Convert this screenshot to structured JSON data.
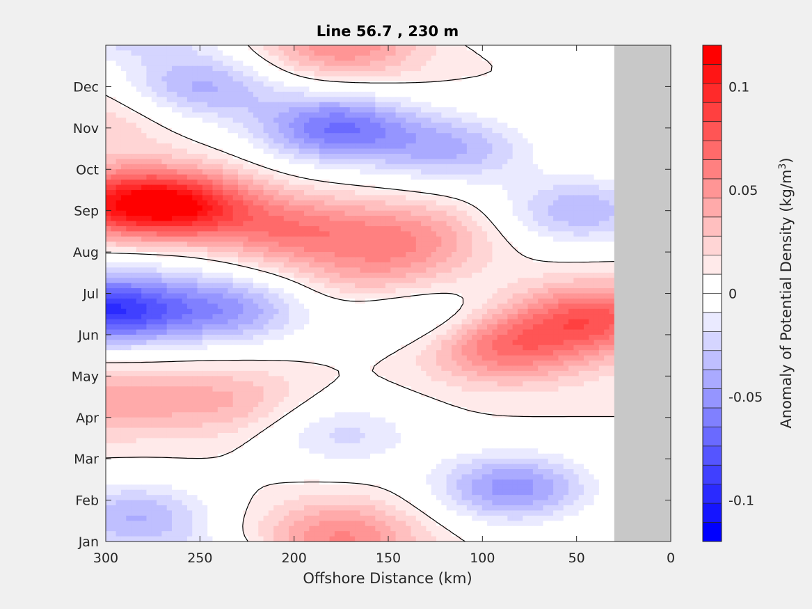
{
  "chart_data": {
    "type": "heatmap",
    "title": "Line 56.7 , 230 m",
    "xlabel": "Offshore Distance (km)",
    "xlim": [
      300,
      0
    ],
    "x_ticks": [
      300,
      250,
      200,
      150,
      100,
      50,
      0
    ],
    "y_ticks": [
      "Jan",
      "Feb",
      "Mar",
      "Apr",
      "May",
      "Jun",
      "Jul",
      "Aug",
      "Sep",
      "Oct",
      "Nov",
      "Dec"
    ],
    "colorbar": {
      "label_main": "Anomaly of Potential Density (kg/m",
      "label_sup": "3",
      "label_end": ")",
      "range": [
        -0.12,
        0.12
      ],
      "step": 0.01,
      "ticks": [
        0.1,
        0.05,
        0,
        -0.05,
        -0.1
      ],
      "tick_labels": [
        "0.1",
        "0.05",
        "0",
        "-0.05",
        "-0.1"
      ],
      "colors_high_to_low": [
        "#ff0000",
        "#ff1515",
        "#ff2a2a",
        "#ff4040",
        "#ff5555",
        "#ff6a6a",
        "#ff8080",
        "#ff9595",
        "#ffaaaa",
        "#ffbfbf",
        "#ffd5d5",
        "#ffeaea",
        "#ffffff",
        "#ffffff",
        "#eaeaff",
        "#d5d5ff",
        "#bfbfff",
        "#aaaaff",
        "#9595ff",
        "#8080ff",
        "#6a6aff",
        "#5555ff",
        "#4040ff",
        "#2a2aff",
        "#1515ff",
        "#0000ff"
      ]
    },
    "no_data_region_km": [
      30,
      0
    ],
    "no_data_color": "#c8c8c8",
    "zero_contour": "black",
    "anomaly_centers": [
      {
        "x_km": 262,
        "month": 8.1,
        "value": 0.098
      },
      {
        "x_km": 200,
        "month": 7.5,
        "value": 0.05
      },
      {
        "x_km": 138,
        "month": 7.4,
        "value": 0.04
      },
      {
        "x_km": 300,
        "month": 8.2,
        "value": 0.06
      },
      {
        "x_km": 178,
        "month": 10.0,
        "value": -0.078
      },
      {
        "x_km": 250,
        "month": 11.0,
        "value": -0.052
      },
      {
        "x_km": 115,
        "month": 9.5,
        "value": -0.048
      },
      {
        "x_km": 48,
        "month": 8.0,
        "value": -0.048
      },
      {
        "x_km": 300,
        "month": 5.6,
        "value": -0.105
      },
      {
        "x_km": 235,
        "month": 5.6,
        "value": -0.058
      },
      {
        "x_km": 135,
        "month": 5.5,
        "value": -0.03
      },
      {
        "x_km": 155,
        "month": 6.4,
        "value": 0.03
      },
      {
        "x_km": 88,
        "month": 4.7,
        "value": 0.06
      },
      {
        "x_km": 40,
        "month": 5.4,
        "value": 0.07
      },
      {
        "x_km": 235,
        "month": 3.4,
        "value": 0.03
      },
      {
        "x_km": 300,
        "month": 3.4,
        "value": 0.035
      },
      {
        "x_km": 175,
        "month": 2.6,
        "value": -0.033
      },
      {
        "x_km": 84,
        "month": 1.3,
        "value": -0.065
      },
      {
        "x_km": 285,
        "month": 0.6,
        "value": -0.05
      },
      {
        "x_km": 175,
        "month": 0.3,
        "value": 0.025
      },
      {
        "x_km": 175,
        "month": 11.9,
        "value": 0.03
      },
      {
        "x_km": 300,
        "month": 10.2,
        "value": 0.02
      },
      {
        "x_km": 270,
        "month": 7.0,
        "value": -0.012
      }
    ]
  }
}
